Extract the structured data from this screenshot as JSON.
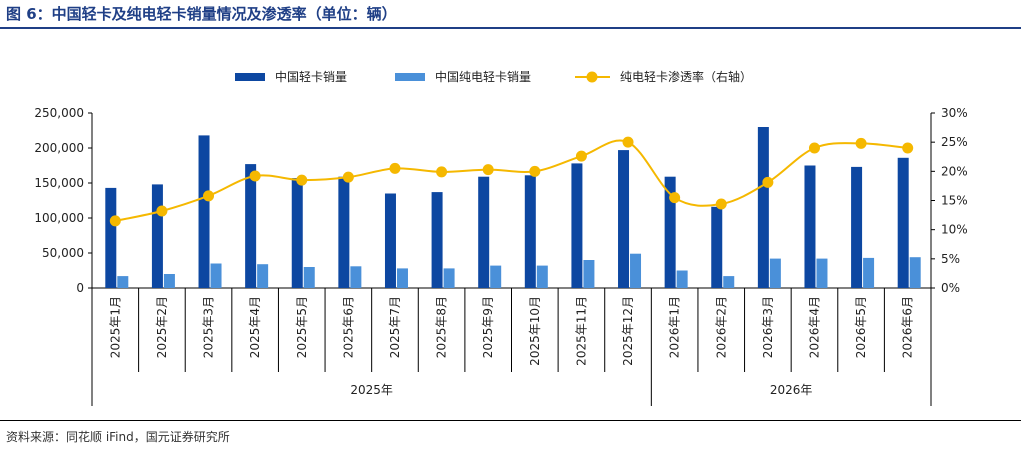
{
  "header": {
    "title": "图 6：中国轻卡及纯电轻卡销量情况及渗透率（单位：辆）"
  },
  "footer": {
    "source": "资料来源：同花顺 iFind，国元证券研究所"
  },
  "colors": {
    "title": "#1f3f86",
    "bar_total": "#0d47a1",
    "bar_ev": "#4a90d9",
    "line": "#f5b800"
  },
  "chart_data": {
    "type": "bar",
    "categories": [
      "2025年1月",
      "2025年2月",
      "2025年3月",
      "2025年4月",
      "2025年5月",
      "2025年6月",
      "2025年7月",
      "2025年8月",
      "2025年9月",
      "2025年10月",
      "2025年11月",
      "2025年12月",
      "2026年1月",
      "2026年2月",
      "2026年3月",
      "2026年4月",
      "2026年5月",
      "2026年6月"
    ],
    "groups": [
      {
        "label": "2025年",
        "count": 12
      },
      {
        "label": "2026年",
        "count": 6
      }
    ],
    "series": [
      {
        "name": "中国轻卡销量",
        "type": "bar",
        "axis": "left",
        "color": "#0d47a1",
        "values": [
          143000,
          148000,
          218000,
          177000,
          157000,
          159000,
          135000,
          137000,
          159000,
          161000,
          178000,
          197000,
          159000,
          116000,
          230000,
          175000,
          173000,
          186000
        ]
      },
      {
        "name": "中国纯电轻卡销量",
        "type": "bar",
        "axis": "left",
        "color": "#4a90d9",
        "values": [
          17000,
          20000,
          35000,
          34000,
          30000,
          31000,
          28000,
          28000,
          32000,
          32000,
          40000,
          49000,
          25000,
          17000,
          42000,
          42000,
          43000,
          44000
        ]
      },
      {
        "name": "纯电轻卡渗透率（右轴）",
        "type": "line",
        "axis": "right",
        "color": "#f5b800",
        "values": [
          11.5,
          13.2,
          15.8,
          19.2,
          18.5,
          19.0,
          20.5,
          19.9,
          20.3,
          20.0,
          22.6,
          25.0,
          15.5,
          14.4,
          18.1,
          24.0,
          24.8,
          24.0
        ]
      }
    ],
    "y_left": {
      "min": 0,
      "max": 250000,
      "ticks": [
        "0",
        "50,000",
        "100,000",
        "150,000",
        "200,000",
        "250,000"
      ]
    },
    "y_right": {
      "min": 0,
      "max": 30,
      "ticks": [
        "0%",
        "5%",
        "10%",
        "15%",
        "20%",
        "25%",
        "30%"
      ]
    },
    "legend_position": "top",
    "grid": false
  }
}
